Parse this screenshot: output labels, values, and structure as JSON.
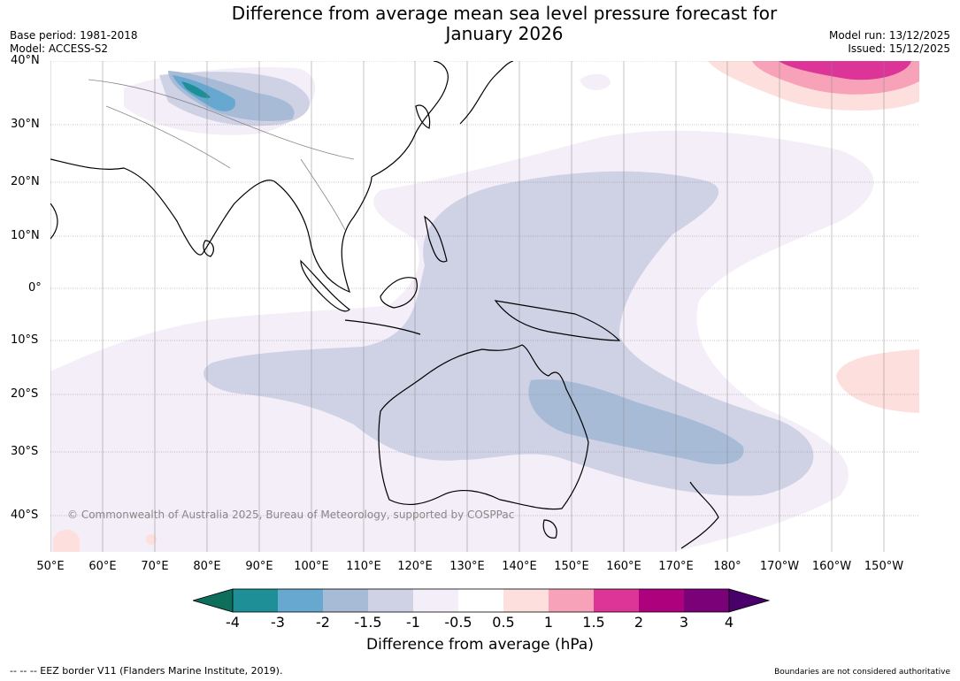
{
  "title_line1": "Difference from average mean sea level pressure forecast for",
  "title_line2": "January 2026",
  "base_period": "Base period: 1981-2018",
  "model": "Model: ACCESS-S2",
  "model_run": "Model run: 13/12/2025",
  "issued": "Issued: 15/12/2025",
  "lat_labels": [
    "40°N",
    "30°N",
    "20°N",
    "10°N",
    "0°",
    "10°S",
    "20°S",
    "30°S",
    "40°S"
  ],
  "lon_labels": [
    "50°E",
    "60°E",
    "70°E",
    "80°E",
    "90°E",
    "100°E",
    "110°E",
    "120°E",
    "130°E",
    "140°E",
    "150°E",
    "160°E",
    "170°E",
    "180°",
    "170°W",
    "160°W",
    "150°W"
  ],
  "copyright": "© Commonwealth of Australia 2025, Bureau of Meteorology, supported by COSPPac",
  "colorbar": {
    "ticks": [
      "-4",
      "-3",
      "-2",
      "-1.5",
      "-1",
      "-0.5",
      "0.5",
      "1",
      "1.5",
      "2",
      "3",
      "4"
    ],
    "colors": [
      "#0e6e5c",
      "#1f8f97",
      "#66a8cf",
      "#a7bbd7",
      "#cfd1e5",
      "#f3eef7",
      "#ffffff",
      "#fde0de",
      "#f7a2b8",
      "#dd3497",
      "#ae017e",
      "#7a0177",
      "#49006a"
    ],
    "label": "Difference from average (hPa)"
  },
  "footer_left": "--  --  -- EEZ border V11 (Flanders Marine Institute, 2019).",
  "footer_right": "Boundaries are not considered authoritative"
}
